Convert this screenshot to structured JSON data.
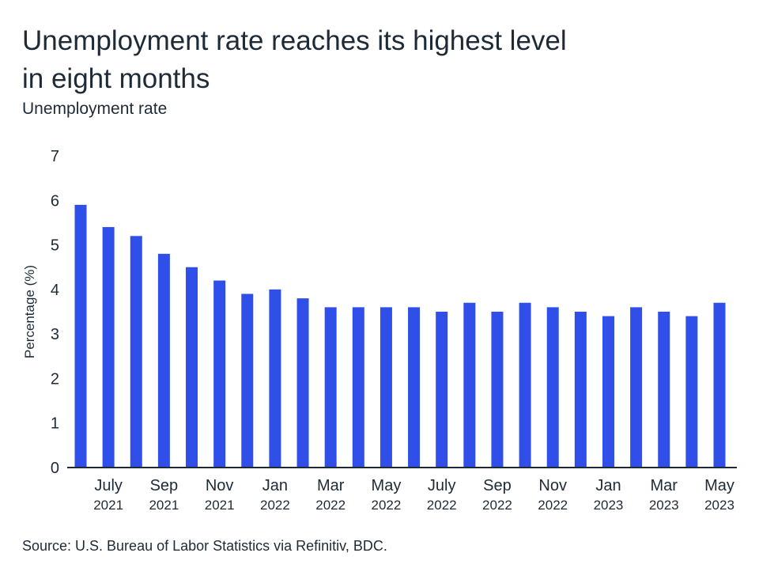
{
  "chart_data": {
    "type": "bar",
    "title": "Unemployment rate reaches its highest level in eight months",
    "subtitle": "Unemployment rate",
    "ylabel": "Percentage (%)",
    "xlabel": "",
    "ylim": [
      0,
      7
    ],
    "yticks": [
      "0",
      "1",
      "2",
      "3",
      "4",
      "5",
      "6",
      "7"
    ],
    "grid": false,
    "bar_color": "#2f4fe8",
    "categories": [
      "Jun 2021",
      "Jul 2021",
      "Aug 2021",
      "Sep 2021",
      "Oct 2021",
      "Nov 2021",
      "Dec 2021",
      "Jan 2022",
      "Feb 2022",
      "Mar 2022",
      "Apr 2022",
      "May 2022",
      "Jun 2022",
      "Jul 2022",
      "Aug 2022",
      "Sep 2022",
      "Oct 2022",
      "Nov 2022",
      "Dec 2022",
      "Jan 2023",
      "Feb 2023",
      "Mar 2023",
      "Apr 2023",
      "May 2023"
    ],
    "values": [
      5.9,
      5.4,
      5.2,
      4.8,
      4.5,
      4.2,
      3.9,
      4.0,
      3.8,
      3.6,
      3.6,
      3.6,
      3.6,
      3.5,
      3.7,
      3.5,
      3.7,
      3.6,
      3.5,
      3.4,
      3.6,
      3.5,
      3.4,
      3.7
    ],
    "xtick_labels": [
      {
        "month": "July",
        "year": "2021"
      },
      {
        "month": "Sep",
        "year": "2021"
      },
      {
        "month": "Nov",
        "year": "2021"
      },
      {
        "month": "Jan",
        "year": "2022"
      },
      {
        "month": "Mar",
        "year": "2022"
      },
      {
        "month": "May",
        "year": "2022"
      },
      {
        "month": "July",
        "year": "2022"
      },
      {
        "month": "Sep",
        "year": "2022"
      },
      {
        "month": "Nov",
        "year": "2022"
      },
      {
        "month": "Jan",
        "year": "2023"
      },
      {
        "month": "Mar",
        "year": "2023"
      },
      {
        "month": "May",
        "year": "2023"
      }
    ],
    "source": "Source: U.S. Bureau of Labor Statistics via Refinitiv, BDC."
  }
}
